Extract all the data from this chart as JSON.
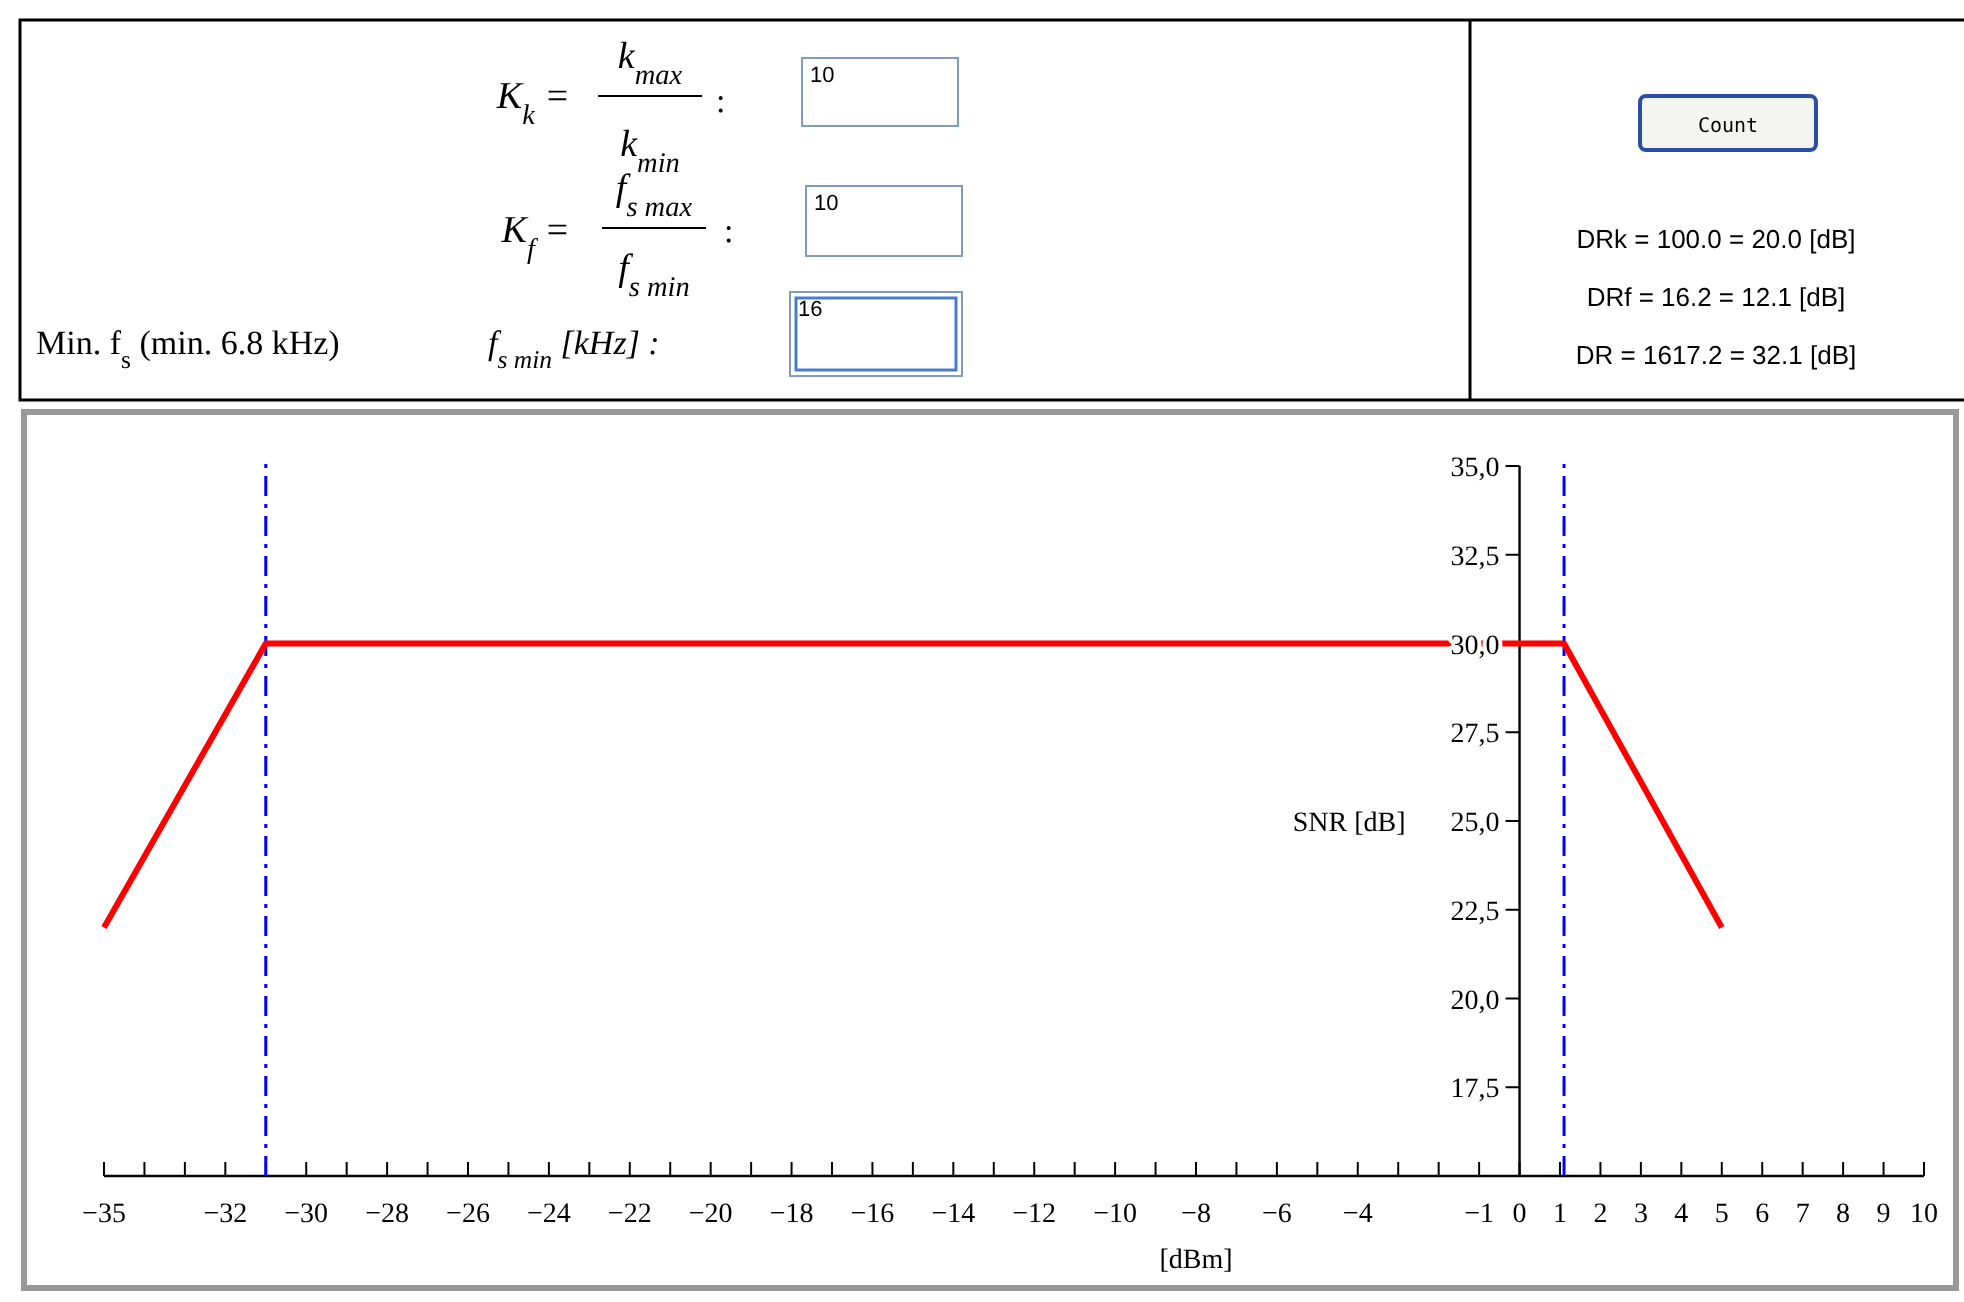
{
  "chart_data": {
    "type": "line",
    "xlabel": "[dBm]",
    "ylabel": "SNR [dB]",
    "x": [
      -35,
      -31,
      1.1,
      5
    ],
    "series": [
      {
        "color": "#ff0000",
        "values": [
          22,
          30,
          30,
          22
        ]
      }
    ],
    "xlim": [
      -35,
      10
    ],
    "xticks": [
      -35,
      {
        "value": -34,
        "label": null
      },
      {
        "value": -33,
        "label": null
      },
      -32,
      {
        "value": -31,
        "label": null
      },
      -30,
      {
        "value": -29,
        "label": null
      },
      -28,
      {
        "value": -27,
        "label": null
      },
      -26,
      {
        "value": -25,
        "label": null
      },
      -24,
      {
        "value": -23,
        "label": null
      },
      -22,
      {
        "value": -21,
        "label": null
      },
      -20,
      {
        "value": -19,
        "label": null
      },
      -18,
      {
        "value": -17,
        "label": null
      },
      -16,
      {
        "value": -15,
        "label": null
      },
      -14,
      {
        "value": -13,
        "label": null
      },
      -12,
      {
        "value": -11,
        "label": null
      },
      -10,
      {
        "value": -9,
        "label": null
      },
      -8,
      {
        "value": -7,
        "label": null
      },
      -6,
      {
        "value": -5,
        "label": null
      },
      -4,
      {
        "value": -3,
        "label": null
      },
      {
        "value": -2,
        "label": null
      },
      -1,
      0,
      1,
      2,
      3,
      4,
      5,
      6,
      7,
      8,
      9,
      10
    ],
    "ylim": [
      15,
      35
    ],
    "yticks": [
      {
        "value": 15,
        "label": null
      },
      {
        "value": 17.5,
        "label": "17,5"
      },
      {
        "value": 20,
        "label": "20,0"
      },
      {
        "value": 22.5,
        "label": "22,5"
      },
      {
        "value": 25,
        "label": "25,0"
      },
      {
        "value": 27.5,
        "label": "27,5"
      },
      {
        "value": 30,
        "label": "30,0"
      },
      {
        "value": 32.5,
        "label": "32,5"
      },
      {
        "value": 35,
        "label": "35,0"
      }
    ],
    "ref_lines": [
      {
        "axis": "x",
        "value": -31,
        "color": "#0000ff",
        "line_style": "dashed"
      },
      {
        "axis": "x",
        "value": 1.1,
        "color": "#0000ff",
        "line_style": "dashed"
      }
    ],
    "marker": "none",
    "line_style": "solid",
    "annotations": [
      "K$_{k}$ =",
      "k$_{max}$",
      "k$_{min}$",
      ":",
      "10",
      "K$_{f}$ =",
      "f$_{s max}$",
      "f$_{s min}$",
      ":",
      "10",
      "Min.  f$_{s}$ (min. 6.8 kHz)",
      "f$_{s min}$ [kHz] :",
      "16",
      "Count",
      "DRk = 100.0 = 20.0 [dB]",
      "DRf = 16.2 = 12.1 [dB]",
      "DR = 1617.2 = 32.1 [dB]"
    ]
  }
}
